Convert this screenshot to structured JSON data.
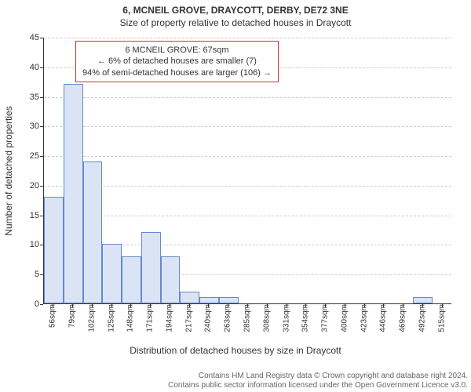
{
  "title_line1": "6, MCNEIL GROVE, DRAYCOTT, DERBY, DE72 3NE",
  "title_line2": "Size of property relative to detached houses in Draycott",
  "ylabel": "Number of detached properties",
  "xlabel": "Distribution of detached houses by size in Draycott",
  "chart": {
    "type": "histogram",
    "ylim": [
      0,
      45
    ],
    "ytick_step": 5,
    "yticks": [
      0,
      5,
      10,
      15,
      20,
      25,
      30,
      35,
      40,
      45
    ],
    "bar_fill": "#dbe4f5",
    "bar_stroke": "#6688cc",
    "plot_bg": "#ffffff",
    "grid_color": "#cccccc",
    "categories": [
      "56sqm",
      "79sqm",
      "102sqm",
      "125sqm",
      "148sqm",
      "171sqm",
      "194sqm",
      "217sqm",
      "240sqm",
      "263sqm",
      "285sqm",
      "308sqm",
      "331sqm",
      "354sqm",
      "377sqm",
      "400sqm",
      "423sqm",
      "446sqm",
      "469sqm",
      "492sqm",
      "515sqm"
    ],
    "values": [
      18,
      37,
      24,
      10,
      8,
      12,
      8,
      2,
      1,
      1,
      0,
      0,
      0,
      0,
      0,
      0,
      0,
      0,
      0,
      1,
      0
    ]
  },
  "annotation": {
    "line1": "6 MCNEIL GROVE: 67sqm",
    "line2": "← 6% of detached houses are smaller (7)",
    "line3": "94% of semi-detached houses are larger (106) →",
    "border_color": "#cc3333"
  },
  "footer_line1": "Contains HM Land Registry data © Crown copyright and database right 2024.",
  "footer_line2": "Contains public sector information licensed under the Open Government Licence v3.0."
}
